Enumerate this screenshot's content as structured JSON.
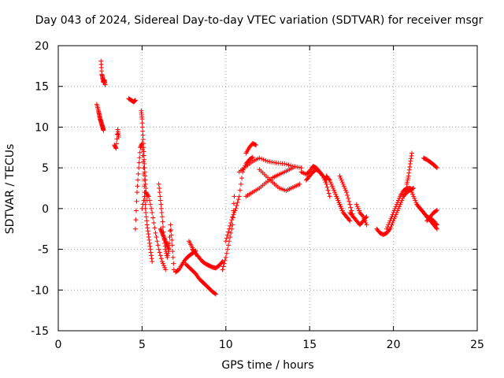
{
  "chart_data": {
    "type": "scatter",
    "title": "Day 043 of 2024, Sidereal Day-to-day VTEC variation (SDTVAR) for receiver msgr",
    "xlabel": "GPS time / hours",
    "ylabel": "SDTVAR / TECUs",
    "xlim": [
      0,
      25
    ],
    "ylim": [
      -15,
      20
    ],
    "xticks": [
      0,
      5,
      10,
      15,
      20,
      25
    ],
    "yticks": [
      -15,
      -10,
      -5,
      0,
      5,
      10,
      15,
      20
    ],
    "grid": true,
    "marker": "+",
    "color": "#ff0000",
    "series": [
      {
        "name": "seg1",
        "x": [
          2.55,
          2.6,
          2.65,
          2.7,
          2.75,
          2.8
        ],
        "y": [
          18.1,
          16.5,
          16.0,
          15.5,
          15.8,
          15.2
        ]
      },
      {
        "name": "seg2",
        "x": [
          2.3,
          2.4,
          2.45,
          2.5,
          2.55,
          2.6,
          2.65,
          2.7
        ],
        "y": [
          12.8,
          12.0,
          11.5,
          11.0,
          10.7,
          10.3,
          10.0,
          9.6
        ]
      },
      {
        "name": "seg3",
        "x": [
          3.35,
          3.45,
          3.55,
          3.6
        ],
        "y": [
          7.8,
          7.4,
          9.7,
          8.8
        ]
      },
      {
        "name": "seg4",
        "x": [
          4.2,
          4.35,
          4.5,
          4.6
        ],
        "y": [
          13.5,
          13.3,
          13.1,
          13.3
        ]
      },
      {
        "name": "seg5",
        "x": [
          4.6,
          4.7,
          4.8,
          4.9,
          5.0,
          5.1,
          5.15,
          5.2,
          5.3,
          5.4,
          5.5,
          5.6
        ],
        "y": [
          -2.5,
          2.0,
          5.0,
          7.5,
          8.0,
          5.0,
          2.0,
          0.0,
          -2.0,
          -3.5,
          -5.0,
          -6.5
        ]
      },
      {
        "name": "seg6",
        "x": [
          4.95,
          5.0,
          5.05,
          5.1,
          5.15,
          5.2,
          5.3
        ],
        "y": [
          12.0,
          11.0,
          9.0,
          7.0,
          5.0,
          3.0,
          1.0
        ]
      },
      {
        "name": "seg7",
        "x": [
          5.0,
          5.2,
          5.4,
          5.6,
          5.8,
          6.0,
          6.2,
          6.4
        ],
        "y": [
          0.0,
          2.0,
          1.5,
          -0.5,
          -3.0,
          -5.0,
          -6.5,
          -7.5
        ]
      },
      {
        "name": "seg8",
        "x": [
          6.0,
          6.1,
          6.2,
          6.3,
          6.4,
          6.5,
          6.6,
          6.7,
          6.8,
          6.9
        ],
        "y": [
          3.0,
          1.0,
          -1.0,
          -3.5,
          -5.0,
          -6.0,
          -5.0,
          -2.0,
          -4.5,
          -7.5
        ]
      },
      {
        "name": "seg9",
        "x": [
          6.1,
          6.2,
          6.3,
          6.4,
          6.5,
          6.6
        ],
        "y": [
          -2.5,
          -3.0,
          -3.5,
          -4.0,
          -4.5,
          -5.0
        ]
      },
      {
        "name": "seg10",
        "x": [
          7.0,
          7.2,
          7.4,
          7.6,
          7.8,
          8.0,
          8.2
        ],
        "y": [
          -7.8,
          -7.5,
          -6.8,
          -6.2,
          -5.8,
          -5.5,
          -5.2
        ]
      },
      {
        "name": "seg11",
        "x": [
          7.6,
          7.8,
          8.0,
          8.2,
          8.4,
          8.6,
          8.8,
          9.0,
          9.2,
          9.4
        ],
        "y": [
          -6.8,
          -7.2,
          -7.6,
          -8.0,
          -8.6,
          -9.0,
          -9.4,
          -9.8,
          -10.2,
          -10.5
        ]
      },
      {
        "name": "seg12",
        "x": [
          8.0,
          8.2,
          8.4,
          8.6,
          8.8,
          9.0,
          9.2,
          9.4,
          9.6,
          9.8
        ],
        "y": [
          -5.0,
          -5.5,
          -6.0,
          -6.5,
          -6.8,
          -7.0,
          -7.2,
          -7.3,
          -7.0,
          -6.5
        ]
      },
      {
        "name": "seg13",
        "x": [
          7.8,
          8.0,
          8.2
        ],
        "y": [
          -4.0,
          -4.8,
          -5.6
        ]
      },
      {
        "name": "seg14",
        "x": [
          9.8,
          10.0,
          10.2,
          10.4,
          10.5
        ],
        "y": [
          -7.5,
          -6.0,
          -4.0,
          -2.0,
          1.5
        ]
      },
      {
        "name": "seg15",
        "x": [
          10.0,
          10.2,
          10.4,
          10.6,
          10.8,
          11.0,
          11.2,
          11.4,
          11.6
        ],
        "y": [
          -4.0,
          -2.5,
          -1.0,
          0.0,
          1.5,
          4.5,
          5.5,
          6.0,
          6.3
        ]
      },
      {
        "name": "seg16",
        "x": [
          11.2,
          11.4,
          11.6,
          11.8
        ],
        "y": [
          6.8,
          7.5,
          8.0,
          7.8
        ]
      },
      {
        "name": "seg17",
        "x": [
          11.2,
          11.6,
          12.0,
          12.4,
          12.8,
          13.2,
          13.6,
          14.0
        ],
        "y": [
          1.5,
          2.0,
          2.5,
          3.2,
          3.8,
          4.2,
          4.6,
          5.0
        ]
      },
      {
        "name": "seg18",
        "x": [
          10.8,
          11.2,
          11.6,
          12.0,
          12.5,
          13.0,
          13.5,
          14.0,
          14.5
        ],
        "y": [
          4.5,
          5.2,
          5.8,
          6.2,
          5.8,
          5.6,
          5.5,
          5.2,
          5.0
        ]
      },
      {
        "name": "seg19",
        "x": [
          12.0,
          12.4,
          12.8,
          13.2,
          13.6,
          14.0,
          14.4
        ],
        "y": [
          4.8,
          4.0,
          3.2,
          2.5,
          2.2,
          2.6,
          3.0
        ]
      },
      {
        "name": "seg20",
        "x": [
          14.5,
          14.8,
          15.0,
          15.2,
          15.4,
          15.6,
          15.8,
          16.0,
          16.2
        ],
        "y": [
          4.5,
          4.2,
          4.6,
          5.2,
          5.0,
          4.5,
          4.0,
          3.0,
          1.5
        ]
      },
      {
        "name": "seg21",
        "x": [
          14.8,
          15.0,
          15.2,
          15.4,
          15.6,
          15.8,
          16.0
        ],
        "y": [
          3.5,
          4.0,
          4.5,
          4.8,
          4.5,
          4.0,
          3.5
        ]
      },
      {
        "name": "seg22",
        "x": [
          16.0,
          16.2,
          16.4,
          16.6,
          16.8,
          17.0
        ],
        "y": [
          4.0,
          3.5,
          2.5,
          1.5,
          0.5,
          -0.5
        ]
      },
      {
        "name": "seg23",
        "x": [
          16.6,
          16.8,
          17.0,
          17.2,
          17.4
        ],
        "y": [
          1.5,
          0.5,
          -0.5,
          -1.0,
          -1.5
        ]
      },
      {
        "name": "seg24",
        "x": [
          16.8,
          17.0,
          17.2,
          17.4,
          17.6
        ],
        "y": [
          4.0,
          3.0,
          2.0,
          0.5,
          -1.0
        ]
      },
      {
        "name": "seg25",
        "x": [
          17.4,
          17.6,
          17.8,
          18.0,
          18.2,
          18.4
        ],
        "y": [
          -0.5,
          -1.0,
          -1.5,
          -2.0,
          -1.5,
          -1.0
        ]
      },
      {
        "name": "seg26",
        "x": [
          17.8,
          18.0,
          18.2,
          18.4
        ],
        "y": [
          0.5,
          -0.5,
          -1.0,
          -2.0
        ]
      },
      {
        "name": "seg27",
        "x": [
          19.0,
          19.2,
          19.4,
          19.6,
          19.8,
          20.0,
          20.2,
          20.4,
          20.6,
          20.8,
          21.0,
          21.2
        ],
        "y": [
          -2.5,
          -3.0,
          -3.2,
          -3.0,
          -2.5,
          -1.5,
          -0.5,
          0.5,
          1.5,
          2.0,
          2.3,
          2.5
        ]
      },
      {
        "name": "seg28",
        "x": [
          19.6,
          19.8,
          20.0,
          20.2,
          20.4,
          20.6,
          20.8,
          21.0
        ],
        "y": [
          -2.5,
          -1.5,
          -0.5,
          0.5,
          1.5,
          2.2,
          2.5,
          2.5
        ]
      },
      {
        "name": "seg29",
        "x": [
          20.8,
          20.9,
          21.0,
          21.1
        ],
        "y": [
          3.0,
          4.0,
          5.5,
          6.8
        ]
      },
      {
        "name": "seg30",
        "x": [
          21.0,
          21.2,
          21.4,
          21.6,
          21.8,
          22.0,
          22.2,
          22.4,
          22.6
        ],
        "y": [
          2.5,
          1.5,
          0.5,
          0.0,
          -0.5,
          -1.0,
          -1.5,
          -2.0,
          -2.5
        ]
      },
      {
        "name": "seg31",
        "x": [
          21.4,
          21.6,
          21.8,
          22.0,
          22.2,
          22.4,
          22.6
        ],
        "y": [
          0.5,
          0.0,
          -0.5,
          -1.0,
          -1.2,
          -1.5,
          -2.0
        ]
      },
      {
        "name": "seg32",
        "x": [
          21.8,
          22.0,
          22.2,
          22.4,
          22.6
        ],
        "y": [
          6.2,
          6.0,
          5.7,
          5.4,
          5.0
        ]
      },
      {
        "name": "seg33",
        "x": [
          22.0,
          22.2,
          22.4,
          22.6
        ],
        "y": [
          -1.5,
          -1.0,
          -0.5,
          -0.2
        ]
      }
    ]
  }
}
